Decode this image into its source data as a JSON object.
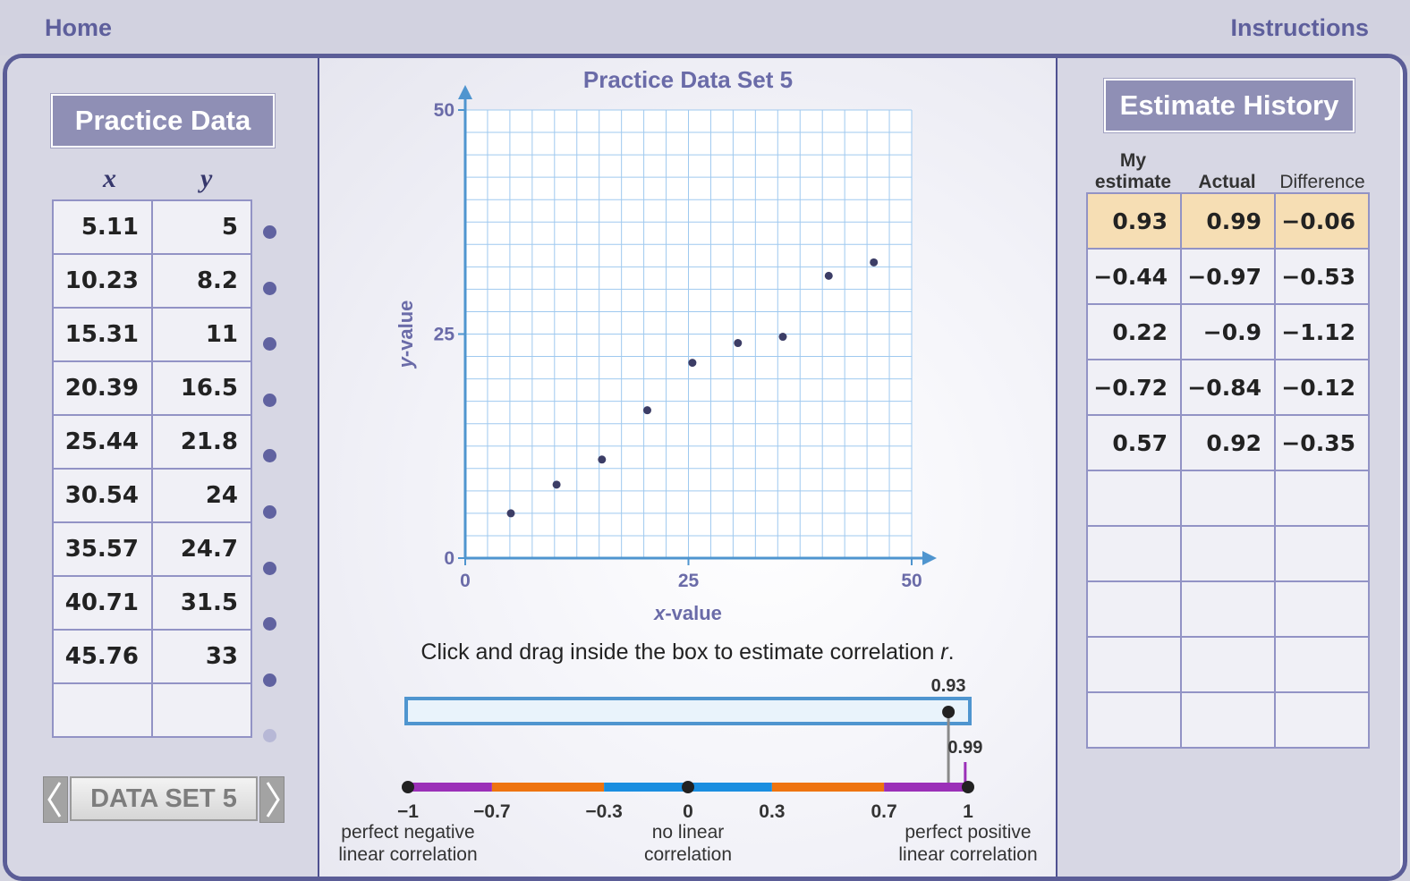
{
  "nav": {
    "home": "Home",
    "instructions": "Instructions"
  },
  "practice": {
    "title": "Practice Data",
    "col_x": "x",
    "col_y": "y",
    "rows": [
      {
        "x": "5.11",
        "y": "5"
      },
      {
        "x": "10.23",
        "y": "8.2"
      },
      {
        "x": "15.31",
        "y": "11"
      },
      {
        "x": "20.39",
        "y": "16.5"
      },
      {
        "x": "25.44",
        "y": "21.8"
      },
      {
        "x": "30.54",
        "y": "24"
      },
      {
        "x": "35.57",
        "y": "24.7"
      },
      {
        "x": "40.71",
        "y": "31.5"
      },
      {
        "x": "45.76",
        "y": "33"
      },
      {
        "x": "",
        "y": ""
      }
    ],
    "dataset_label": "DATA SET 5"
  },
  "chart_data": {
    "type": "scatter",
    "title": "Practice Data Set 5",
    "xlabel_var": "x",
    "xlabel_rest": "-value",
    "ylabel_var": "y",
    "ylabel_rest": "-value",
    "xlim": [
      0,
      50
    ],
    "ylim": [
      0,
      50
    ],
    "xticks": [
      "0",
      "25",
      "50"
    ],
    "yticks": [
      "0",
      "25",
      "50"
    ],
    "grid": true,
    "points": [
      {
        "x": 5.11,
        "y": 5
      },
      {
        "x": 10.23,
        "y": 8.2
      },
      {
        "x": 15.31,
        "y": 11
      },
      {
        "x": 20.39,
        "y": 16.5
      },
      {
        "x": 25.44,
        "y": 21.8
      },
      {
        "x": 30.54,
        "y": 24
      },
      {
        "x": 35.57,
        "y": 24.7
      },
      {
        "x": 40.71,
        "y": 31.5
      },
      {
        "x": 45.76,
        "y": 33
      }
    ]
  },
  "estimator": {
    "instruction": "Click and drag inside the box to estimate correlation ",
    "instruction_var": "r",
    "instruction_end": ".",
    "estimate": 0.93,
    "estimate_label": "0.93",
    "actual": 0.99,
    "actual_label": "0.99",
    "scale_ticks": [
      {
        "value": -1,
        "label": "−1"
      },
      {
        "value": -0.7,
        "label": "−0.7"
      },
      {
        "value": -0.3,
        "label": "−0.3"
      },
      {
        "value": 0,
        "label": "0"
      },
      {
        "value": 0.3,
        "label": "0.3"
      },
      {
        "value": 0.7,
        "label": "0.7"
      },
      {
        "value": 1,
        "label": "1"
      }
    ],
    "segment_colors": [
      "#9b30b8",
      "#ee7410",
      "#1a8ee0",
      "#1a8ee0",
      "#ee7410",
      "#9b30b8"
    ],
    "desc_left": [
      "perfect negative",
      "linear correlation"
    ],
    "desc_mid": [
      "no linear",
      "correlation"
    ],
    "desc_right": [
      "perfect positive",
      "linear correlation"
    ]
  },
  "history": {
    "title": "Estimate History",
    "head_my_1": "My",
    "head_my_2": "estimate",
    "head_actual": "Actual",
    "head_diff": "Difference",
    "rows": [
      {
        "my": "0.93",
        "actual": "0.99",
        "diff": "−0.06"
      },
      {
        "my": "−0.44",
        "actual": "−0.97",
        "diff": "−0.53"
      },
      {
        "my": "0.22",
        "actual": "−0.9",
        "diff": "−1.12"
      },
      {
        "my": "−0.72",
        "actual": "−0.84",
        "diff": "−0.12"
      },
      {
        "my": "0.57",
        "actual": "0.92",
        "diff": "−0.35"
      },
      {
        "my": "",
        "actual": "",
        "diff": ""
      },
      {
        "my": "",
        "actual": "",
        "diff": ""
      },
      {
        "my": "",
        "actual": "",
        "diff": ""
      },
      {
        "my": "",
        "actual": "",
        "diff": ""
      },
      {
        "my": "",
        "actual": "",
        "diff": ""
      }
    ]
  },
  "colors": {
    "accent": "#5b5d97",
    "axis": "#4f95cf",
    "grid": "#9fc9ef",
    "highlight_row": "#f6deb4"
  }
}
